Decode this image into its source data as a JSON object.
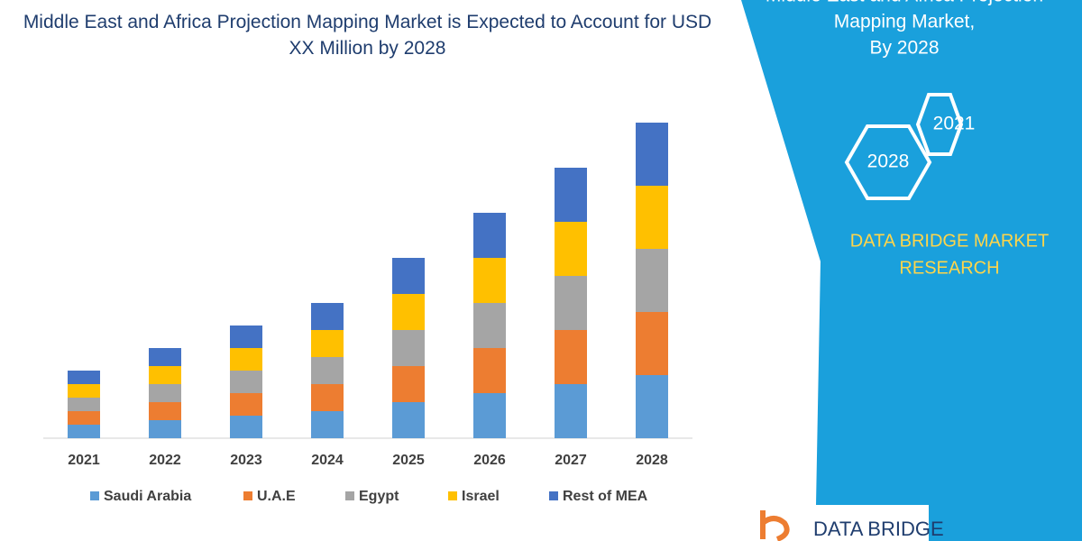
{
  "chart_data": {
    "type": "stacked-bar",
    "title": "Middle East and Africa Projection Mapping Market is Expected to Account for USD XX Million by 2028",
    "categories": [
      "2021",
      "2022",
      "2023",
      "2024",
      "2025",
      "2026",
      "2027",
      "2028"
    ],
    "series": [
      {
        "name": "Saudi Arabia",
        "color": "#5b9bd5",
        "values": [
          15,
          20,
          25,
          30,
          40,
          50,
          60,
          70
        ]
      },
      {
        "name": "U.A.E",
        "color": "#ed7d31",
        "values": [
          15,
          20,
          25,
          30,
          40,
          50,
          60,
          70
        ]
      },
      {
        "name": "Egypt",
        "color": "#a5a5a5",
        "values": [
          15,
          20,
          25,
          30,
          40,
          50,
          60,
          70
        ]
      },
      {
        "name": "Israel",
        "color": "#ffc000",
        "values": [
          15,
          20,
          25,
          30,
          40,
          50,
          60,
          70
        ]
      },
      {
        "name": "Rest of MEA",
        "color": "#4472c4",
        "values": [
          15,
          20,
          25,
          30,
          40,
          50,
          60,
          70
        ]
      }
    ]
  },
  "panel": {
    "title_lines": [
      "Middle East and Africa Projection",
      "Mapping Market,",
      "By 2028"
    ],
    "badges": [
      "2021",
      "2028"
    ],
    "brand_lines": [
      "DATA BRIDGE MARKET",
      "RESEARCH"
    ],
    "logo": "DATA BRIDGE"
  }
}
